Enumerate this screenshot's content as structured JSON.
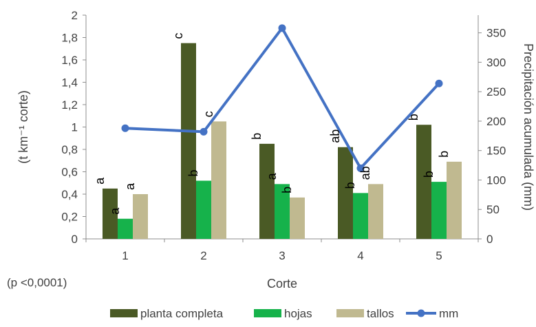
{
  "chart_data": {
    "type": "bar",
    "categories": [
      "1",
      "2",
      "3",
      "4",
      "5"
    ],
    "xlabel": "Corte",
    "ylabel": "(t km⁻¹ corte)",
    "y2label": "Precipitación acumulada (mm)",
    "ylim": [
      0,
      2
    ],
    "y_ticks": [
      "0",
      "0,2",
      "0,4",
      "0,6",
      "0,8",
      "1",
      "1,2",
      "1,4",
      "1,6",
      "1,8",
      "2"
    ],
    "y2lim": [
      0,
      380
    ],
    "y2_ticks": [
      "0",
      "50",
      "100",
      "150",
      "200",
      "250",
      "300",
      "350"
    ],
    "series": [
      {
        "name": "planta completa",
        "kind": "bar",
        "color": "#4a5a25",
        "values": [
          0.45,
          1.75,
          0.85,
          0.82,
          1.02
        ],
        "labels": [
          "a",
          "c",
          "b",
          "ab",
          "b"
        ]
      },
      {
        "name": "hojas",
        "kind": "bar",
        "color": "#16b24b",
        "values": [
          0.18,
          0.52,
          0.49,
          0.41,
          0.51
        ],
        "labels": [
          "a",
          "b",
          "a",
          "b",
          "b"
        ]
      },
      {
        "name": "tallos",
        "kind": "bar",
        "color": "#c0b990",
        "values": [
          0.4,
          1.05,
          0.37,
          0.49,
          0.69
        ],
        "labels": [
          "a",
          "c",
          "b",
          "ab",
          "b"
        ]
      },
      {
        "name": "mm",
        "kind": "line",
        "axis": "right",
        "color": "#4472c4",
        "values": [
          188,
          182,
          358,
          120,
          264
        ]
      }
    ],
    "grid": false,
    "legend_position": "bottom"
  },
  "footnote": "(p <0,0001)"
}
